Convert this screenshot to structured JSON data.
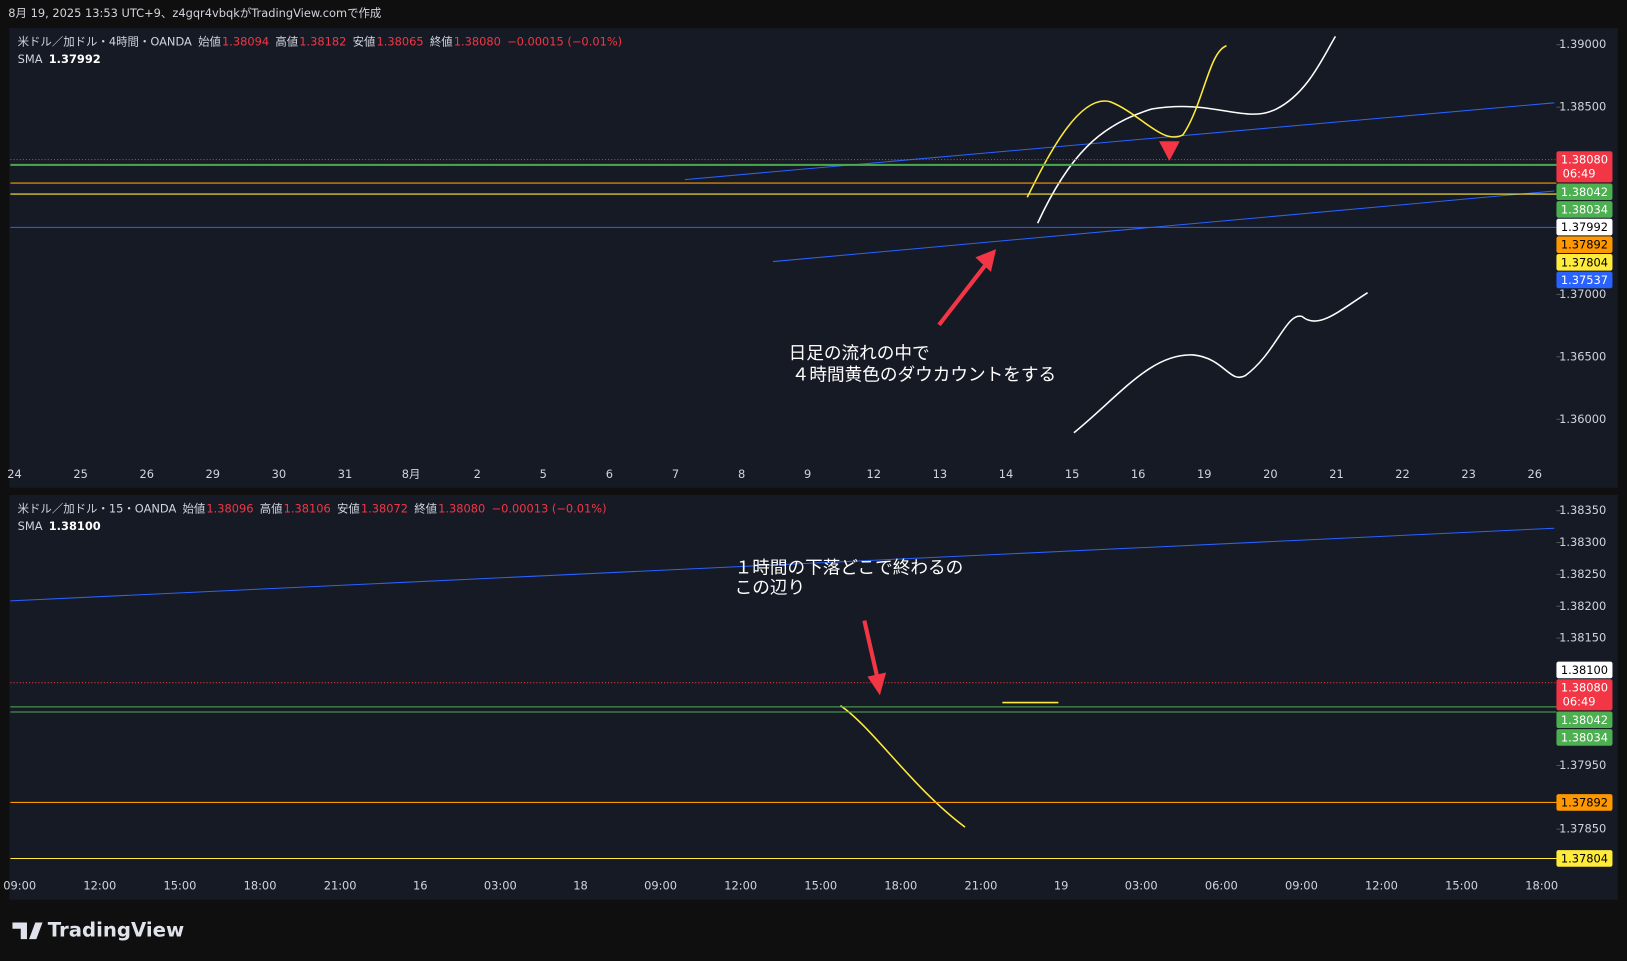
{
  "header": {
    "title": "8月 19, 2025 13:53 UTC+9、z4gqr4vbqkがTradingView.comで作成"
  },
  "panels": [
    {
      "symbol": "米ドル／加ドル・4時間・OANDA",
      "ohlc": [
        {
          "label": "始値",
          "value": "1.38094"
        },
        {
          "label": "高値",
          "value": "1.38182"
        },
        {
          "label": "安値",
          "value": "1.38065"
        },
        {
          "label": "終値",
          "value": "1.38080"
        }
      ],
      "change": "−0.00015 (−0.01%)",
      "indicator": {
        "name": "SMA",
        "value": "1.37992"
      },
      "ylim": [
        1.35659,
        1.39125
      ],
      "yticks": [
        {
          "value": 1.39,
          "label": "1.39000"
        },
        {
          "value": 1.385,
          "label": "1.38500"
        },
        {
          "value": 1.37,
          "label": "1.37000"
        },
        {
          "value": 1.365,
          "label": "1.36500"
        },
        {
          "value": 1.36,
          "label": "1.36000"
        }
      ],
      "x_labels": [
        "24",
        "25",
        "26",
        "29",
        "30",
        "31",
        "8月",
        "2",
        "5",
        "6",
        "7",
        "8",
        "9",
        "12",
        "13",
        "14",
        "15",
        "16",
        "19",
        "20",
        "21",
        "22",
        "23",
        "26"
      ],
      "levels": [
        {
          "value": 1.3808,
          "label": "1.38080",
          "color": "#f23645",
          "text_color": "#ffffff",
          "countdown": "06:49",
          "line": "dotted"
        },
        {
          "value": 1.38042,
          "label": "1.38042",
          "color": "#4caf50",
          "text_color": "#ffffff",
          "line": "solid"
        },
        {
          "value": 1.38034,
          "label": "1.38034",
          "color": "#4caf50",
          "text_color": "#ffffff",
          "line": "solid"
        },
        {
          "value": 1.37992,
          "label": "1.37992",
          "color": "#ffffff",
          "text_color": "#000000",
          "line": "none"
        },
        {
          "value": 1.37892,
          "label": "1.37892",
          "color": "#ff9800",
          "text_color": "#000000",
          "line": "solid"
        },
        {
          "value": 1.37804,
          "label": "1.37804",
          "color": "#ffeb3b",
          "text_color": "#000000",
          "line": "solid"
        },
        {
          "value": 1.37537,
          "label": "1.37537",
          "color": "#2962ff",
          "text_color": "#ffffff",
          "line": "solid"
        }
      ],
      "annotations": [
        "日足の流れの中で",
        "４時間黄色のダウカウントをする"
      ]
    },
    {
      "symbol": "米ドル／加ドル・15・OANDA",
      "ohlc": [
        {
          "label": "始値",
          "value": "1.38096"
        },
        {
          "label": "高値",
          "value": "1.38106"
        },
        {
          "label": "安値",
          "value": "1.38072"
        },
        {
          "label": "終値",
          "value": "1.38080"
        }
      ],
      "change": "−0.00013 (−0.01%)",
      "indicator": {
        "name": "SMA",
        "value": "1.38100"
      },
      "ylim": [
        1.3778,
        1.38373
      ],
      "yticks": [
        {
          "value": 1.3835,
          "label": "1.38350"
        },
        {
          "value": 1.383,
          "label": "1.38300"
        },
        {
          "value": 1.3825,
          "label": "1.38250"
        },
        {
          "value": 1.382,
          "label": "1.38200"
        },
        {
          "value": 1.3815,
          "label": "1.38150"
        },
        {
          "value": 1.3795,
          "label": "1.37950"
        },
        {
          "value": 1.3785,
          "label": "1.37850"
        }
      ],
      "x_labels": [
        "09:00",
        "12:00",
        "15:00",
        "18:00",
        "21:00",
        "16",
        "03:00",
        "18",
        "09:00",
        "12:00",
        "15:00",
        "18:00",
        "21:00",
        "19",
        "03:00",
        "06:00",
        "09:00",
        "12:00",
        "15:00",
        "18:00"
      ],
      "levels": [
        {
          "value": 1.381,
          "label": "1.38100",
          "color": "#ffffff",
          "text_color": "#000000",
          "line": "none"
        },
        {
          "value": 1.3808,
          "label": "1.38080",
          "color": "#f23645",
          "text_color": "#ffffff",
          "countdown": "06:49",
          "line": "dotted"
        },
        {
          "value": 1.38042,
          "label": "1.38042",
          "color": "#4caf50",
          "text_color": "#ffffff",
          "line": "solid"
        },
        {
          "value": 1.38034,
          "label": "1.38034",
          "color": "#4caf50",
          "text_color": "#ffffff",
          "line": "solid"
        },
        {
          "value": 1.37892,
          "label": "1.37892",
          "color": "#ff9800",
          "text_color": "#000000",
          "line": "solid"
        },
        {
          "value": 1.37804,
          "label": "1.37804",
          "color": "#ffeb3b",
          "text_color": "#000000",
          "line": "solid"
        }
      ],
      "annotations": [
        "１時間の下落どこで終わるの",
        "この辺り"
      ]
    }
  ],
  "footer": {
    "brand": "TradingView"
  }
}
